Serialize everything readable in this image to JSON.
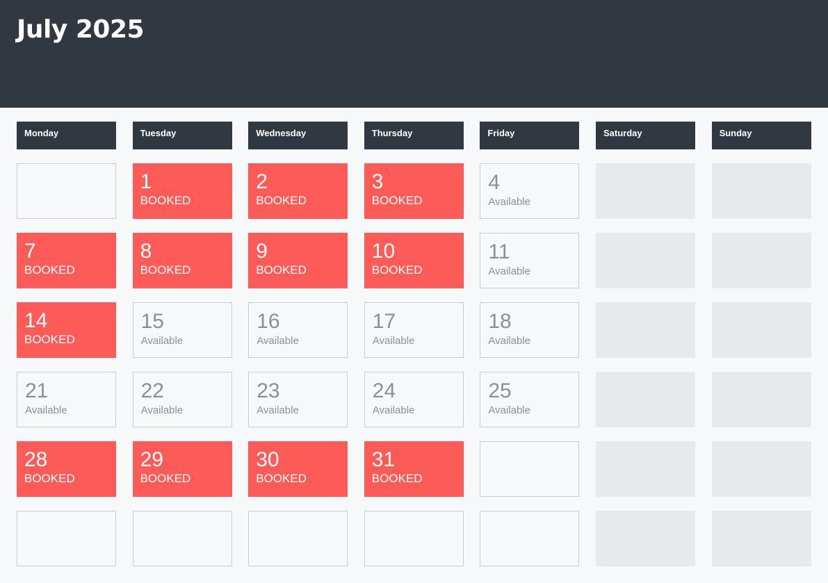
{
  "calendar": {
    "title": "July 2025",
    "weekdays": [
      "Monday",
      "Tuesday",
      "Wednesday",
      "Thursday",
      "Friday",
      "Saturday",
      "Sunday"
    ],
    "booked_label": "BOOKED",
    "available_label": "Available",
    "colors": {
      "header_bg": "#323842",
      "booked": "#fc5b58",
      "weekend": "#e8e9eb",
      "available_text": "#8a8f98"
    },
    "weeks": [
      [
        {
          "state": "empty"
        },
        {
          "day": "1",
          "state": "booked"
        },
        {
          "day": "2",
          "state": "booked"
        },
        {
          "day": "3",
          "state": "booked"
        },
        {
          "day": "4",
          "state": "available"
        },
        {
          "state": "weekend"
        },
        {
          "state": "weekend"
        }
      ],
      [
        {
          "day": "7",
          "state": "booked"
        },
        {
          "day": "8",
          "state": "booked"
        },
        {
          "day": "9",
          "state": "booked"
        },
        {
          "day": "10",
          "state": "booked"
        },
        {
          "day": "11",
          "state": "available"
        },
        {
          "state": "weekend"
        },
        {
          "state": "weekend"
        }
      ],
      [
        {
          "day": "14",
          "state": "booked"
        },
        {
          "day": "15",
          "state": "available"
        },
        {
          "day": "16",
          "state": "available"
        },
        {
          "day": "17",
          "state": "available"
        },
        {
          "day": "18",
          "state": "available"
        },
        {
          "state": "weekend"
        },
        {
          "state": "weekend"
        }
      ],
      [
        {
          "day": "21",
          "state": "available"
        },
        {
          "day": "22",
          "state": "available"
        },
        {
          "day": "23",
          "state": "available"
        },
        {
          "day": "24",
          "state": "available"
        },
        {
          "day": "25",
          "state": "available"
        },
        {
          "state": "weekend"
        },
        {
          "state": "weekend"
        }
      ],
      [
        {
          "day": "28",
          "state": "booked"
        },
        {
          "day": "29",
          "state": "booked"
        },
        {
          "day": "30",
          "state": "booked"
        },
        {
          "day": "31",
          "state": "booked"
        },
        {
          "state": "empty"
        },
        {
          "state": "weekend"
        },
        {
          "state": "weekend"
        }
      ],
      [
        {
          "state": "empty"
        },
        {
          "state": "empty"
        },
        {
          "state": "empty"
        },
        {
          "state": "empty"
        },
        {
          "state": "empty"
        },
        {
          "state": "weekend"
        },
        {
          "state": "weekend"
        }
      ]
    ]
  }
}
